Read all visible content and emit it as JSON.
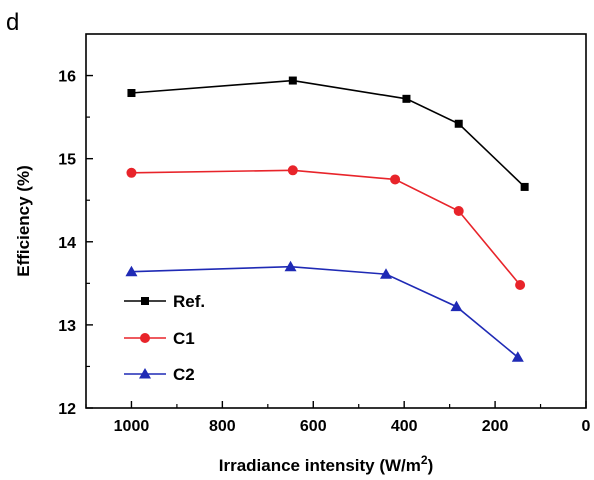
{
  "panel_label": "d",
  "chart_data": {
    "type": "line",
    "xlabel": "Irradiance intensity (W/m",
    "xlabel_sup": "2",
    "xlabel_end": ")",
    "ylabel": "Efficiency (%)",
    "xlim": [
      1100,
      0
    ],
    "ylim": [
      12,
      16.5
    ],
    "x_reversed": true,
    "xticks": [
      1000,
      800,
      600,
      400,
      200,
      0
    ],
    "yticks": [
      12,
      13,
      14,
      15,
      16
    ],
    "legend_position": "bottom-left",
    "series": [
      {
        "name": "Ref.",
        "marker": "square",
        "color": "#000000",
        "points": [
          [
            1000,
            15.79
          ],
          [
            645,
            15.94
          ],
          [
            395,
            15.72
          ],
          [
            280,
            15.42
          ],
          [
            135,
            14.66
          ]
        ]
      },
      {
        "name": "C1",
        "marker": "circle",
        "color": "#e8242a",
        "points": [
          [
            1000,
            14.83
          ],
          [
            645,
            14.86
          ],
          [
            420,
            14.75
          ],
          [
            280,
            14.37
          ],
          [
            145,
            13.48
          ]
        ]
      },
      {
        "name": "C2",
        "marker": "triangle",
        "color": "#1f2ab5",
        "points": [
          [
            1000,
            13.64
          ],
          [
            650,
            13.7
          ],
          [
            440,
            13.61
          ],
          [
            285,
            13.22
          ],
          [
            150,
            12.61
          ]
        ]
      }
    ]
  }
}
